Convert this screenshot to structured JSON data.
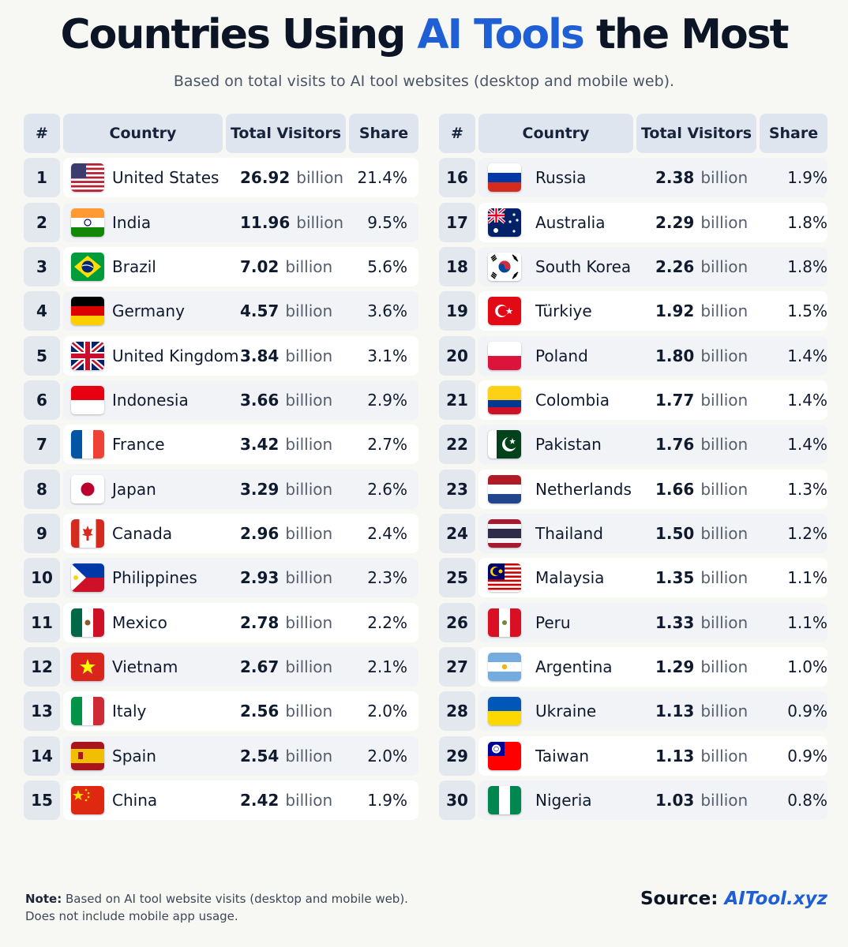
{
  "title": {
    "part1": "Countries Using ",
    "accent": "AI Tools",
    "part2": " the Most"
  },
  "subtitle": "Based on total visits to AI tool websites (desktop and mobile web).",
  "headers": {
    "rank": "#",
    "country": "Country",
    "visitors": "Total Visitors",
    "share": "Share"
  },
  "note": {
    "label": "Note:",
    "line1": " Based on AI tool website visits (desktop and mobile web).",
    "line2": "Does not include mobile app usage."
  },
  "source": {
    "label": "Source: ",
    "site": "AITool.xyz"
  },
  "colors": {
    "accent": "#1f5fd6",
    "header_bg": "#dfe5ee",
    "text": "#0f1a2e"
  },
  "chart_data": {
    "type": "table",
    "columns": [
      "#",
      "Country",
      "Total Visitors",
      "Share"
    ],
    "unit": "billion",
    "rows": [
      {
        "rank": "1",
        "country": "United States",
        "visitors": "26.92",
        "share": "21.4%",
        "flag": "us-flag-icon"
      },
      {
        "rank": "2",
        "country": "India",
        "visitors": "11.96",
        "share": "9.5%",
        "flag": "india-flag-icon"
      },
      {
        "rank": "3",
        "country": "Brazil",
        "visitors": "7.02",
        "share": "5.6%",
        "flag": "brazil-flag-icon"
      },
      {
        "rank": "4",
        "country": "Germany",
        "visitors": "4.57",
        "share": "3.6%",
        "flag": "germany-flag-icon"
      },
      {
        "rank": "5",
        "country": "United Kingdom",
        "visitors": "3.84",
        "share": "3.1%",
        "flag": "uk-flag-icon"
      },
      {
        "rank": "6",
        "country": "Indonesia",
        "visitors": "3.66",
        "share": "2.9%",
        "flag": "indonesia-flag-icon"
      },
      {
        "rank": "7",
        "country": "France",
        "visitors": "3.42",
        "share": "2.7%",
        "flag": "france-flag-icon"
      },
      {
        "rank": "8",
        "country": "Japan",
        "visitors": "3.29",
        "share": "2.6%",
        "flag": "japan-flag-icon"
      },
      {
        "rank": "9",
        "country": "Canada",
        "visitors": "2.96",
        "share": "2.4%",
        "flag": "canada-flag-icon"
      },
      {
        "rank": "10",
        "country": "Philippines",
        "visitors": "2.93",
        "share": "2.3%",
        "flag": "philippines-flag-icon"
      },
      {
        "rank": "11",
        "country": "Mexico",
        "visitors": "2.78",
        "share": "2.2%",
        "flag": "mexico-flag-icon"
      },
      {
        "rank": "12",
        "country": "Vietnam",
        "visitors": "2.67",
        "share": "2.1%",
        "flag": "vietnam-flag-icon"
      },
      {
        "rank": "13",
        "country": "Italy",
        "visitors": "2.56",
        "share": "2.0%",
        "flag": "italy-flag-icon"
      },
      {
        "rank": "14",
        "country": "Spain",
        "visitors": "2.54",
        "share": "2.0%",
        "flag": "spain-flag-icon"
      },
      {
        "rank": "15",
        "country": "China",
        "visitors": "2.42",
        "share": "1.9%",
        "flag": "china-flag-icon"
      },
      {
        "rank": "16",
        "country": "Russia",
        "visitors": "2.38",
        "share": "1.9%",
        "flag": "russia-flag-icon"
      },
      {
        "rank": "17",
        "country": "Australia",
        "visitors": "2.29",
        "share": "1.8%",
        "flag": "australia-flag-icon"
      },
      {
        "rank": "18",
        "country": "South Korea",
        "visitors": "2.26",
        "share": "1.8%",
        "flag": "south-korea-flag-icon"
      },
      {
        "rank": "19",
        "country": "Türkiye",
        "visitors": "1.92",
        "share": "1.5%",
        "flag": "turkiye-flag-icon"
      },
      {
        "rank": "20",
        "country": "Poland",
        "visitors": "1.80",
        "share": "1.4%",
        "flag": "poland-flag-icon"
      },
      {
        "rank": "21",
        "country": "Colombia",
        "visitors": "1.77",
        "share": "1.4%",
        "flag": "colombia-flag-icon"
      },
      {
        "rank": "22",
        "country": "Pakistan",
        "visitors": "1.76",
        "share": "1.4%",
        "flag": "pakistan-flag-icon"
      },
      {
        "rank": "23",
        "country": "Netherlands",
        "visitors": "1.66",
        "share": "1.3%",
        "flag": "netherlands-flag-icon"
      },
      {
        "rank": "24",
        "country": "Thailand",
        "visitors": "1.50",
        "share": "1.2%",
        "flag": "thailand-flag-icon"
      },
      {
        "rank": "25",
        "country": "Malaysia",
        "visitors": "1.35",
        "share": "1.1%",
        "flag": "malaysia-flag-icon"
      },
      {
        "rank": "26",
        "country": "Peru",
        "visitors": "1.33",
        "share": "1.1%",
        "flag": "peru-flag-icon"
      },
      {
        "rank": "27",
        "country": "Argentina",
        "visitors": "1.29",
        "share": "1.0%",
        "flag": "argentina-flag-icon"
      },
      {
        "rank": "28",
        "country": "Ukraine",
        "visitors": "1.13",
        "share": "0.9%",
        "flag": "ukraine-flag-icon"
      },
      {
        "rank": "29",
        "country": "Taiwan",
        "visitors": "1.13",
        "share": "0.9%",
        "flag": "taiwan-flag-icon"
      },
      {
        "rank": "30",
        "country": "Nigeria",
        "visitors": "1.03",
        "share": "0.8%",
        "flag": "nigeria-flag-icon"
      }
    ]
  }
}
